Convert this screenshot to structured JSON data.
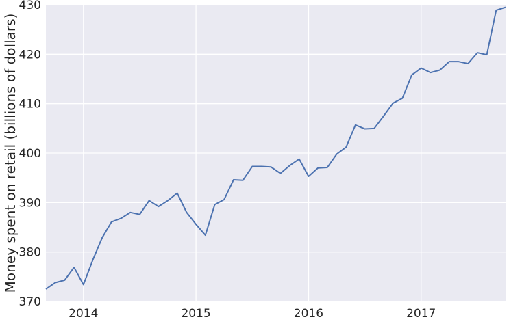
{
  "chart_data": {
    "type": "line",
    "title": "",
    "xlabel": "",
    "ylabel": "Money spent on retail (billions of dollars)",
    "xlim": [
      "2013-09",
      "2017-10"
    ],
    "ylim": [
      370,
      430
    ],
    "grid": true,
    "x_ticks": [
      {
        "date": "2014-01",
        "label": "2014"
      },
      {
        "date": "2015-01",
        "label": "2015"
      },
      {
        "date": "2016-01",
        "label": "2016"
      },
      {
        "date": "2017-01",
        "label": "2017"
      }
    ],
    "y_ticks": [
      370,
      380,
      390,
      400,
      410,
      420,
      430
    ],
    "colors": {
      "background": "#eaeaf2",
      "grid": "#ffffff",
      "line": "#4c72b0"
    },
    "series": [
      {
        "x": [
          "2013-09",
          "2013-10",
          "2013-11",
          "2013-12",
          "2014-01",
          "2014-02",
          "2014-03",
          "2014-04",
          "2014-05",
          "2014-06",
          "2014-07",
          "2014-08",
          "2014-09",
          "2014-10",
          "2014-11",
          "2014-12",
          "2015-01",
          "2015-02",
          "2015-03",
          "2015-04",
          "2015-05",
          "2015-06",
          "2015-07",
          "2015-08",
          "2015-09",
          "2015-10",
          "2015-11",
          "2015-12",
          "2016-01",
          "2016-02",
          "2016-03",
          "2016-04",
          "2016-05",
          "2016-06",
          "2016-07",
          "2016-08",
          "2016-09",
          "2016-10",
          "2016-11",
          "2016-12",
          "2017-01",
          "2017-02",
          "2017-03",
          "2017-04",
          "2017-05",
          "2017-06",
          "2017-07",
          "2017-08",
          "2017-09",
          "2017-10"
        ],
        "values": [
          372.5,
          373.8,
          374.3,
          376.9,
          373.4,
          378.4,
          382.9,
          386.1,
          386.8,
          388.0,
          387.6,
          390.4,
          389.2,
          390.4,
          391.9,
          388.0,
          385.6,
          383.4,
          389.6,
          390.6,
          394.6,
          394.5,
          397.3,
          397.3,
          397.2,
          395.9,
          397.5,
          398.8,
          395.3,
          397.0,
          397.1,
          399.8,
          401.2,
          405.7,
          404.9,
          405.0,
          407.5,
          410.1,
          411.1,
          415.8,
          417.2,
          416.3,
          416.8,
          418.5,
          418.5,
          418.1,
          420.3,
          419.9,
          428.9,
          429.5
        ]
      }
    ]
  }
}
